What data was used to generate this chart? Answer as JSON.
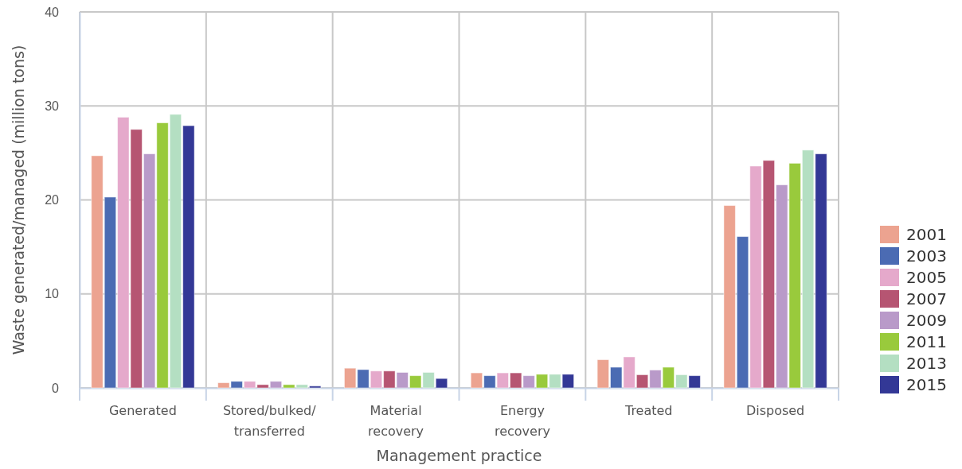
{
  "chart_data": {
    "type": "bar",
    "xlabel": "Management practice",
    "ylabel": "Waste generated/managed (million tons)",
    "categories": [
      "Generated",
      "Stored/bulked/\ntransferred",
      "Material\nrecovery",
      "Energy\nrecovery",
      "Treated",
      "Disposed"
    ],
    "ylim": [
      0,
      40
    ],
    "yticks": [
      0,
      10,
      20,
      30,
      40
    ],
    "grid": true,
    "legend": "right",
    "series": [
      {
        "name": "2001",
        "color": "#eca390",
        "values": [
          24.7,
          0.55,
          2.1,
          1.6,
          3.0,
          19.4
        ]
      },
      {
        "name": "2003",
        "color": "#4b6bb3",
        "values": [
          20.3,
          0.7,
          1.95,
          1.3,
          2.2,
          16.1
        ]
      },
      {
        "name": "2005",
        "color": "#e5a9cb",
        "values": [
          28.8,
          0.7,
          1.8,
          1.6,
          3.3,
          23.6
        ]
      },
      {
        "name": "2007",
        "color": "#b65572",
        "values": [
          27.5,
          0.35,
          1.8,
          1.6,
          1.4,
          24.2
        ]
      },
      {
        "name": "2009",
        "color": "#b99ac9",
        "values": [
          24.9,
          0.7,
          1.65,
          1.3,
          1.9,
          21.6
        ]
      },
      {
        "name": "2011",
        "color": "#99ca3c",
        "values": [
          28.2,
          0.35,
          1.3,
          1.45,
          2.2,
          23.9
        ]
      },
      {
        "name": "2013",
        "color": "#b4dfc2",
        "values": [
          29.1,
          0.35,
          1.65,
          1.45,
          1.4,
          25.3
        ]
      },
      {
        "name": "2015",
        "color": "#333896",
        "values": [
          27.9,
          0.2,
          1.0,
          1.45,
          1.3,
          24.9
        ]
      }
    ]
  }
}
